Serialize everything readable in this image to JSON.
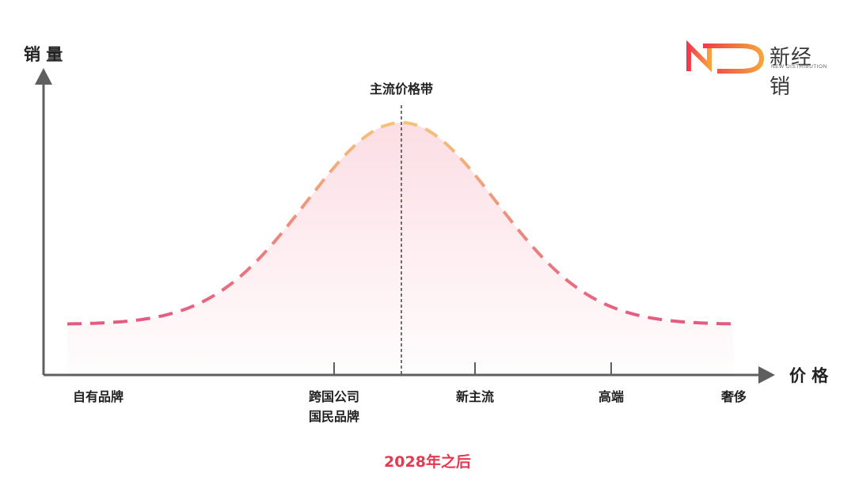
{
  "brand": {
    "name": "新经销",
    "subtitle": "NEW DISTRIBUTION",
    "mark_colors": [
      "#ef3a4c",
      "#f7a23c"
    ]
  },
  "chart_data": {
    "type": "area",
    "ylabel": "销 量",
    "xlabel": "价 格",
    "peak_label": "主流价格带",
    "caption": "2028年之后",
    "x_categories": [
      {
        "label": "自有品牌"
      },
      {
        "label": "跨国公司",
        "label2": "国民品牌"
      },
      {
        "label": "新主流"
      },
      {
        "label": "高端"
      },
      {
        "label": "奢侈"
      }
    ],
    "curve": {
      "shape": "bell",
      "line_style": "dashed",
      "gradient_colors": [
        "#f5c27a",
        "#e45a80"
      ],
      "fill_color": "#fbd3dc"
    },
    "grid": false,
    "colors": {
      "axis": "#5f5f5f",
      "caption": "#e8384f",
      "text": "#222222"
    }
  }
}
